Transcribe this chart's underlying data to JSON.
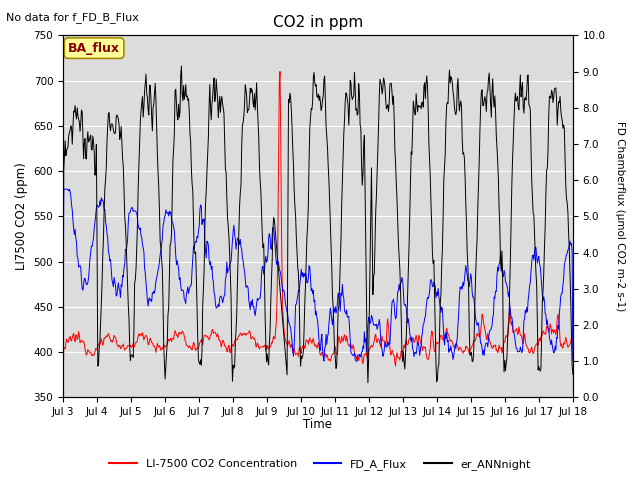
{
  "title": "CO2 in ppm",
  "top_left_note": "No data for f_FD_B_Flux",
  "ylabel_left": "LI7500 CO2 (ppm)",
  "ylabel_right": "FD Chamberflux (μmol CO2 m-2 s-1)",
  "xlabel": "Time",
  "ylim_left": [
    350,
    750
  ],
  "ylim_right": [
    0.0,
    10.0
  ],
  "yticks_left": [
    350,
    400,
    450,
    500,
    550,
    600,
    650,
    700,
    750
  ],
  "yticks_right": [
    0.0,
    1.0,
    2.0,
    3.0,
    4.0,
    5.0,
    6.0,
    7.0,
    8.0,
    9.0,
    10.0
  ],
  "xtick_labels": [
    "Jul 3",
    "Jul 4",
    "Jul 5",
    "Jul 6",
    "Jul 7",
    "Jul 8",
    "Jul 9",
    "Jul 10",
    "Jul 11",
    "Jul 12",
    "Jul 13",
    "Jul 14",
    "Jul 15",
    "Jul 16",
    "Jul 17",
    "Jul 18"
  ],
  "legend_labels": [
    "LI-7500 CO2 Concentration",
    "FD_A_Flux",
    "er_ANNnight"
  ],
  "legend_colors": [
    "red",
    "blue",
    "black"
  ],
  "ba_flux_label": "BA_flux",
  "ba_flux_box_color": "#FFFF99",
  "ba_flux_text_color": "#8B0000",
  "line_red_color": "#FF0000",
  "line_blue_color": "#0000FF",
  "line_black_color": "#000000",
  "bg_color": "#DCDCDC",
  "fig_bg_color": "#FFFFFF",
  "grid_color": "#FFFFFF"
}
